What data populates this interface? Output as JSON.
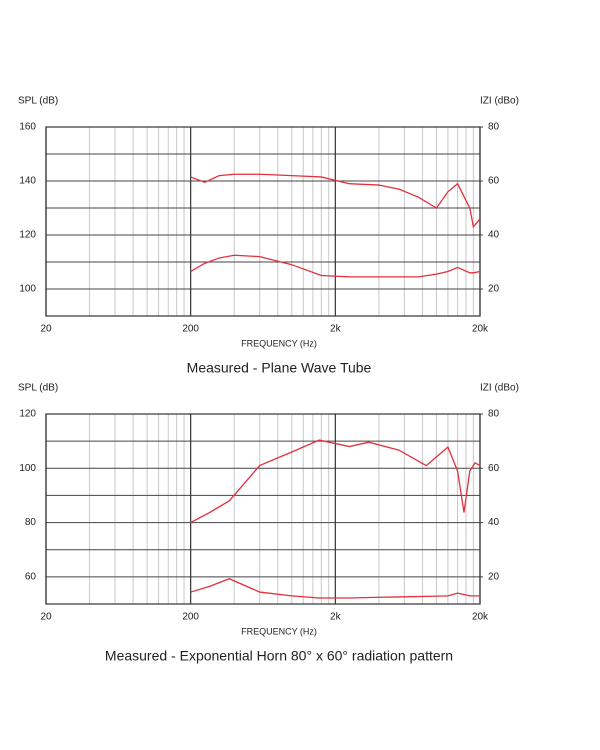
{
  "chart_data": [
    {
      "type": "line",
      "caption": "Measured - Plane Wave Tube",
      "x_label": "FREQUENCY (Hz)",
      "y_label": "SPL (dB)",
      "y2_label": "IZI (dBo)",
      "xscale": "log",
      "grid": true,
      "x": [
        200,
        250,
        315,
        400,
        600,
        1000,
        1600,
        2500,
        4000,
        5500,
        7500,
        10000,
        12000,
        14000,
        17000,
        18000,
        20000
      ],
      "series": [
        {
          "color": "#e2303c",
          "values": [
            141.5,
            139.5,
            142,
            142.5,
            142.5,
            142,
            141.5,
            139,
            138.5,
            137,
            134,
            130,
            136,
            139,
            130,
            123,
            126
          ]
        },
        {
          "color": "#e2303c",
          "axis": "y2",
          "values": [
            26.5,
            29.5,
            31.5,
            32.5,
            32,
            29,
            25,
            24.5,
            24.5,
            24.5,
            24.5,
            25.5,
            26.5,
            28,
            26,
            26,
            26.5
          ]
        }
      ],
      "xlim": [
        20,
        20000
      ],
      "xticks": [
        20,
        200,
        {
          "value": 2000,
          "label": "2k"
        },
        {
          "value": 20000,
          "label": "20k"
        }
      ],
      "ylim": [
        90,
        160
      ],
      "yticks": [
        100,
        120,
        140,
        160
      ],
      "y2lim": [
        10,
        80
      ],
      "y2ticks": [
        20,
        40,
        60,
        80
      ]
    },
    {
      "type": "line",
      "caption": "Measured - Exponential Horn 80° x 60° radiation pattern",
      "x_label": "FREQUENCY (Hz)",
      "y_label": "SPL (dB)",
      "y2_label": "IZI (dBo)",
      "xscale": "log",
      "grid": true,
      "x": [
        200,
        270,
        370,
        600,
        1000,
        1550,
        2500,
        3400,
        5500,
        8500,
        12000,
        14000,
        15500,
        17000,
        18500,
        20000
      ],
      "series": [
        {
          "color": "#e2303c",
          "values": [
            80,
            83.7,
            88,
            101,
            106,
            110.4,
            108,
            109.6,
            106.7,
            101,
            107.8,
            99,
            83.7,
            99,
            102,
            101
          ]
        },
        {
          "color": "#e2303c",
          "axis": "y2",
          "values": [
            14.4,
            16.5,
            19.3,
            14.4,
            13,
            12.2,
            12.2,
            12.4,
            12.6,
            12.8,
            13,
            14,
            13.5,
            13,
            13,
            13
          ]
        }
      ],
      "xlim": [
        20,
        20000
      ],
      "xticks": [
        20,
        200,
        {
          "value": 2000,
          "label": "2k"
        },
        {
          "value": 20000,
          "label": "20k"
        }
      ],
      "ylim": [
        50,
        120
      ],
      "yticks": [
        60,
        80,
        100,
        120
      ],
      "y2lim": [
        10,
        80
      ],
      "y2ticks": [
        20,
        40,
        60,
        80
      ]
    }
  ]
}
